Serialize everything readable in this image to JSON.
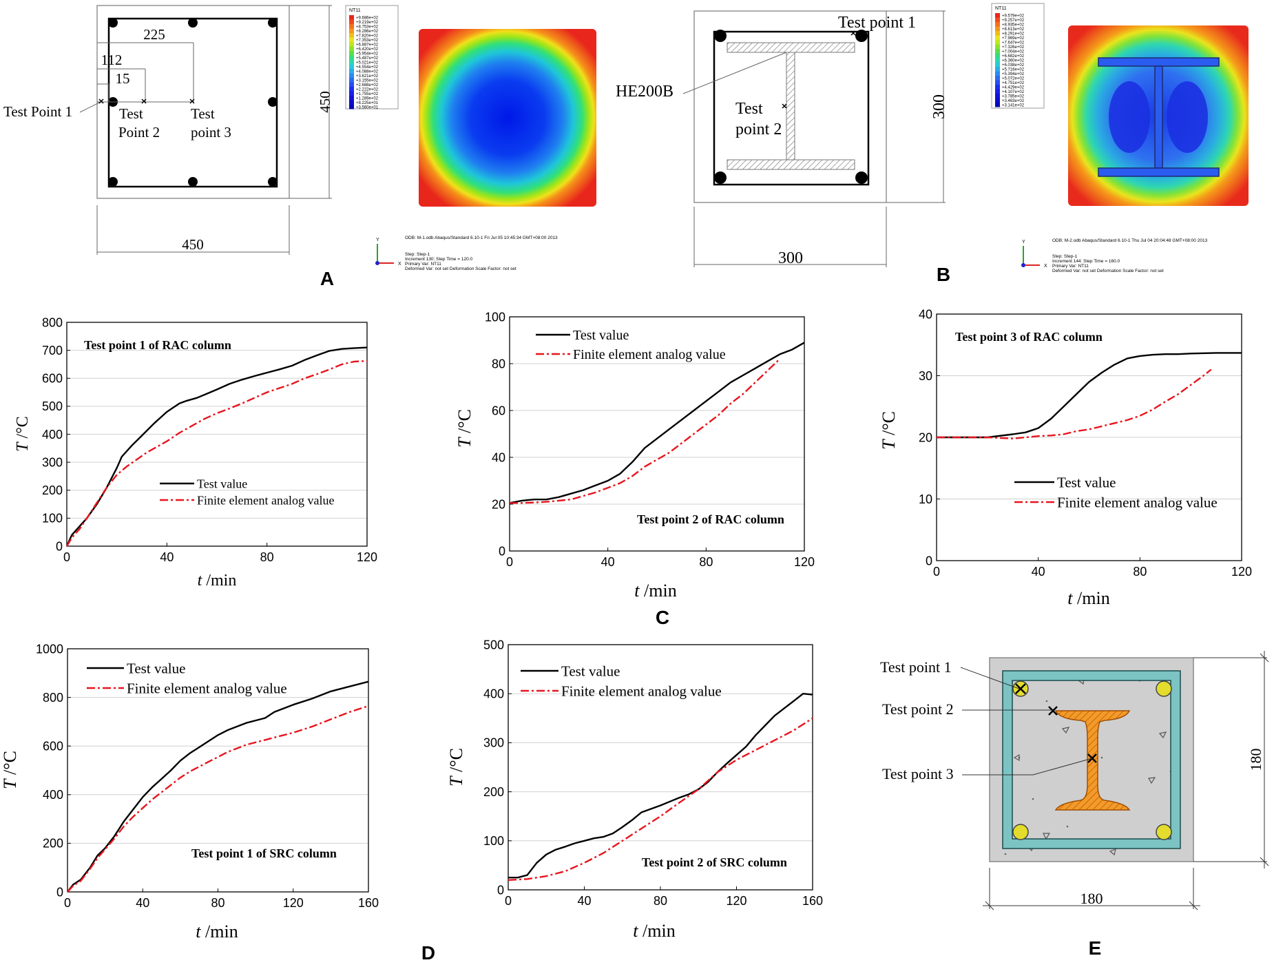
{
  "panel_labels": {
    "A": "A",
    "B": "B",
    "C": "C",
    "D": "D",
    "E": "E"
  },
  "section_a": {
    "dims": {
      "d225": "225",
      "d112": "112",
      "d15": "15",
      "height": "450",
      "width": "450"
    },
    "test_point_1": "Test Point 1",
    "test_point_2": [
      "Test",
      "Point 2"
    ],
    "test_point_3": [
      "Test",
      "point 3"
    ],
    "legend_title": "NT11",
    "legend_values": [
      "+9.686e+02",
      "+9.219e+02",
      "+8.753e+02",
      "+8.286e+02",
      "+7.820e+02",
      "+7.353e+02",
      "+6.887e+02",
      "+6.420e+02",
      "+5.954e+02",
      "+5.487e+02",
      "+5.021e+02",
      "+4.554e+02",
      "+4.088e+02",
      "+3.621e+02",
      "+3.155e+02",
      "+2.688e+02",
      "+2.222e+02",
      "+1.755e+02",
      "+1.289e+02",
      "+8.225e+01",
      "+3.560e+01"
    ],
    "odb_info": "ODB: M-1.odb    Abaqus/Standard 6.10-1    Fri Jul 05 10:45:34 GMT+08:00 2013",
    "step_info": [
      "Step: Step-1",
      "Increment   130: Step Time =    120.0",
      "Primary Var: NT11",
      "Deformed Var: not set   Deformation Scale Factor: not set"
    ]
  },
  "section_b": {
    "dims": {
      "height": "300",
      "width": "300"
    },
    "test_point_1": "Test point 1",
    "test_point_2": [
      "Test",
      "point 2"
    ],
    "section_label": "HE200B",
    "legend_title": "NT11",
    "legend_values": [
      "+9.579e+02",
      "+9.257e+02",
      "+8.935e+02",
      "+8.613e+02",
      "+8.291e+02",
      "+7.969e+02",
      "+7.647e+02",
      "+7.326e+02",
      "+7.004e+02",
      "+6.682e+02",
      "+6.360e+02",
      "+6.038e+02",
      "+5.716e+02",
      "+5.394e+02",
      "+5.072e+02",
      "+4.751e+02",
      "+4.429e+02",
      "+4.107e+02",
      "+3.785e+02",
      "+3.463e+02",
      "+3.141e+02"
    ],
    "odb_info": "ODB: M-2.odb    Abaqus/Standard 6.10-1    Thu Jul 04 20:04:48 GMT+08:00 2013",
    "step_info": [
      "Step: Step-1",
      "Increment   144: Step Time =    160.0",
      "Primary Var: NT11",
      "Deformed Var: not set   Deformation Scale Factor: not set"
    ]
  },
  "section_e": {
    "test_point_1": "Test point 1",
    "test_point_2": "Test point 2",
    "test_point_3": "Test point 3",
    "dims": {
      "height": "180",
      "width": "180"
    }
  },
  "axis_symbols": {
    "T": "T",
    "deg_c": " /°C",
    "t": "t",
    "min": " /min"
  },
  "chart_data": [
    {
      "id": "c1",
      "type": "line",
      "title": "Test point 1 of RAC column",
      "xlabel": "t /min",
      "ylabel": "T /°C",
      "xlim": [
        0,
        120
      ],
      "ylim": [
        0,
        800
      ],
      "xticks": [
        0,
        40,
        80,
        120
      ],
      "yticks": [
        0,
        100,
        200,
        300,
        400,
        500,
        600,
        700,
        800
      ],
      "legend": "middle-right",
      "series": [
        {
          "name": "Test value",
          "style": "solid",
          "color": "#000000",
          "x": [
            0,
            2,
            5,
            8,
            12,
            16,
            20,
            22,
            26,
            30,
            35,
            40,
            45,
            48,
            52,
            56,
            60,
            65,
            70,
            75,
            80,
            85,
            90,
            95,
            100,
            105,
            110,
            115,
            120
          ],
          "y": [
            0,
            40,
            70,
            100,
            150,
            210,
            280,
            320,
            360,
            395,
            440,
            480,
            510,
            520,
            530,
            545,
            560,
            580,
            595,
            608,
            620,
            632,
            645,
            665,
            682,
            698,
            705,
            708,
            710
          ]
        },
        {
          "name": "Finite element analog value",
          "style": "dashdot",
          "color": "#e8141c",
          "x": [
            0,
            2,
            5,
            8,
            12,
            16,
            20,
            24,
            28,
            32,
            36,
            40,
            45,
            50,
            55,
            60,
            65,
            70,
            75,
            80,
            85,
            90,
            95,
            100,
            105,
            110,
            115,
            120
          ],
          "y": [
            0,
            30,
            60,
            100,
            155,
            210,
            255,
            285,
            310,
            335,
            355,
            375,
            405,
            430,
            455,
            475,
            492,
            510,
            530,
            550,
            565,
            580,
            600,
            615,
            632,
            650,
            660,
            662
          ]
        }
      ]
    },
    {
      "id": "c2",
      "type": "line",
      "title": "Test point 2 of RAC column",
      "xlabel": "t /min",
      "ylabel": "T /°C",
      "xlim": [
        0,
        120
      ],
      "ylim": [
        0,
        100
      ],
      "xticks": [
        0,
        40,
        80,
        120
      ],
      "yticks": [
        0,
        20,
        40,
        60,
        80,
        100
      ],
      "legend": "top-left",
      "series": [
        {
          "name": "Test value",
          "style": "solid",
          "color": "#000000",
          "x": [
            0,
            5,
            10,
            15,
            20,
            25,
            30,
            35,
            40,
            45,
            50,
            55,
            60,
            65,
            70,
            75,
            80,
            85,
            90,
            95,
            100,
            105,
            110,
            115,
            120
          ],
          "y": [
            20.5,
            21.5,
            22,
            22,
            23,
            24.5,
            26,
            28,
            30,
            33,
            38,
            44,
            48,
            52,
            56,
            60,
            64,
            68,
            72,
            75,
            78,
            81,
            84,
            86,
            89
          ]
        },
        {
          "name": "Finite element analog value",
          "style": "dashdot",
          "color": "#e8141c",
          "x": [
            0,
            5,
            10,
            15,
            20,
            25,
            30,
            35,
            40,
            45,
            50,
            55,
            60,
            65,
            70,
            75,
            80,
            85,
            90,
            95,
            100,
            105,
            110
          ],
          "y": [
            20.5,
            20.5,
            20.7,
            21,
            21.5,
            22,
            23.5,
            25,
            27,
            29,
            32,
            36,
            39,
            42,
            46,
            50,
            54,
            58,
            63,
            67,
            72,
            77,
            82
          ]
        }
      ]
    },
    {
      "id": "c3",
      "type": "line",
      "title": "Test point 3 of RAC column",
      "xlabel": "t/min",
      "ylabel": "T /°C",
      "xlim": [
        0,
        120
      ],
      "ylim": [
        0,
        40
      ],
      "xticks": [
        0,
        40,
        80,
        120
      ],
      "yticks": [
        0,
        10,
        20,
        30,
        40
      ],
      "legend": "lower-right",
      "series": [
        {
          "name": "Test value",
          "style": "solid",
          "color": "#000000",
          "x": [
            0,
            10,
            20,
            30,
            35,
            40,
            45,
            50,
            55,
            60,
            65,
            70,
            75,
            80,
            85,
            90,
            95,
            100,
            110,
            120
          ],
          "y": [
            20,
            20,
            20,
            20.5,
            20.8,
            21.5,
            23,
            25,
            27,
            29,
            30.5,
            31.8,
            32.8,
            33.2,
            33.4,
            33.5,
            33.5,
            33.6,
            33.7,
            33.7
          ]
        },
        {
          "name": "Finite element analog value",
          "style": "dashdot",
          "color": "#e8141c",
          "x": [
            0,
            10,
            20,
            30,
            35,
            40,
            45,
            50,
            55,
            60,
            65,
            70,
            75,
            80,
            85,
            90,
            95,
            100,
            105,
            108
          ],
          "y": [
            20,
            20,
            20,
            19.8,
            20,
            20.2,
            20.3,
            20.5,
            21,
            21.3,
            21.8,
            22.3,
            22.8,
            23.5,
            24.5,
            25.8,
            27,
            28.5,
            30,
            31
          ]
        }
      ]
    },
    {
      "id": "d1",
      "type": "line",
      "title": "Test point 1 of SRC column",
      "xlabel": "t /min",
      "ylabel": "T /°C",
      "xlim": [
        0,
        160
      ],
      "ylim": [
        0,
        1000
      ],
      "xticks": [
        0,
        40,
        80,
        120,
        160
      ],
      "yticks": [
        0,
        200,
        400,
        600,
        800,
        1000
      ],
      "legend": "top-left",
      "series": [
        {
          "name": "Test value",
          "style": "solid",
          "color": "#000000",
          "x": [
            0,
            3,
            7,
            12,
            16,
            20,
            25,
            30,
            35,
            40,
            45,
            50,
            55,
            60,
            65,
            70,
            75,
            80,
            85,
            90,
            95,
            100,
            105,
            110,
            115,
            120,
            130,
            140,
            150,
            160
          ],
          "y": [
            0,
            30,
            50,
            100,
            150,
            180,
            230,
            290,
            340,
            390,
            430,
            465,
            500,
            540,
            570,
            595,
            620,
            645,
            665,
            680,
            695,
            705,
            715,
            740,
            755,
            770,
            795,
            825,
            845,
            865
          ]
        },
        {
          "name": "Finite element analog value",
          "style": "dashdot",
          "color": "#e8141c",
          "x": [
            0,
            3,
            7,
            12,
            16,
            20,
            25,
            30,
            35,
            40,
            45,
            50,
            55,
            60,
            65,
            70,
            75,
            80,
            85,
            90,
            95,
            100,
            105,
            110,
            115,
            120,
            130,
            140,
            150,
            160
          ],
          "y": [
            0,
            25,
            45,
            95,
            140,
            175,
            220,
            270,
            310,
            345,
            380,
            410,
            440,
            470,
            495,
            515,
            535,
            555,
            575,
            590,
            605,
            615,
            625,
            635,
            645,
            655,
            680,
            710,
            740,
            765
          ]
        }
      ]
    },
    {
      "id": "d2",
      "type": "line",
      "title": "Test point 2 of SRC column",
      "xlabel": "t /min",
      "ylabel": "T /°C",
      "xlim": [
        0,
        160
      ],
      "ylim": [
        0,
        500
      ],
      "xticks": [
        0,
        40,
        80,
        120,
        160
      ],
      "yticks": [
        0,
        100,
        200,
        300,
        400,
        500
      ],
      "legend": "top-left",
      "series": [
        {
          "name": "Test value",
          "style": "solid",
          "color": "#000000",
          "x": [
            0,
            5,
            10,
            15,
            20,
            25,
            30,
            35,
            40,
            45,
            50,
            55,
            60,
            65,
            70,
            75,
            80,
            85,
            90,
            95,
            100,
            105,
            110,
            115,
            120,
            125,
            130,
            135,
            140,
            145,
            150,
            155,
            160
          ],
          "y": [
            25,
            25,
            30,
            55,
            72,
            82,
            88,
            95,
            100,
            105,
            108,
            115,
            128,
            142,
            158,
            165,
            172,
            180,
            188,
            195,
            205,
            220,
            240,
            258,
            275,
            292,
            315,
            335,
            355,
            370,
            385,
            400,
            398
          ]
        },
        {
          "name": "Finite element analog value",
          "style": "dashdot",
          "color": "#e8141c",
          "x": [
            0,
            10,
            20,
            30,
            40,
            50,
            60,
            70,
            80,
            90,
            100,
            110,
            120,
            130,
            140,
            150,
            160
          ],
          "y": [
            20,
            22,
            28,
            38,
            55,
            75,
            100,
            125,
            150,
            178,
            205,
            240,
            265,
            285,
            305,
            325,
            350
          ]
        }
      ]
    }
  ]
}
